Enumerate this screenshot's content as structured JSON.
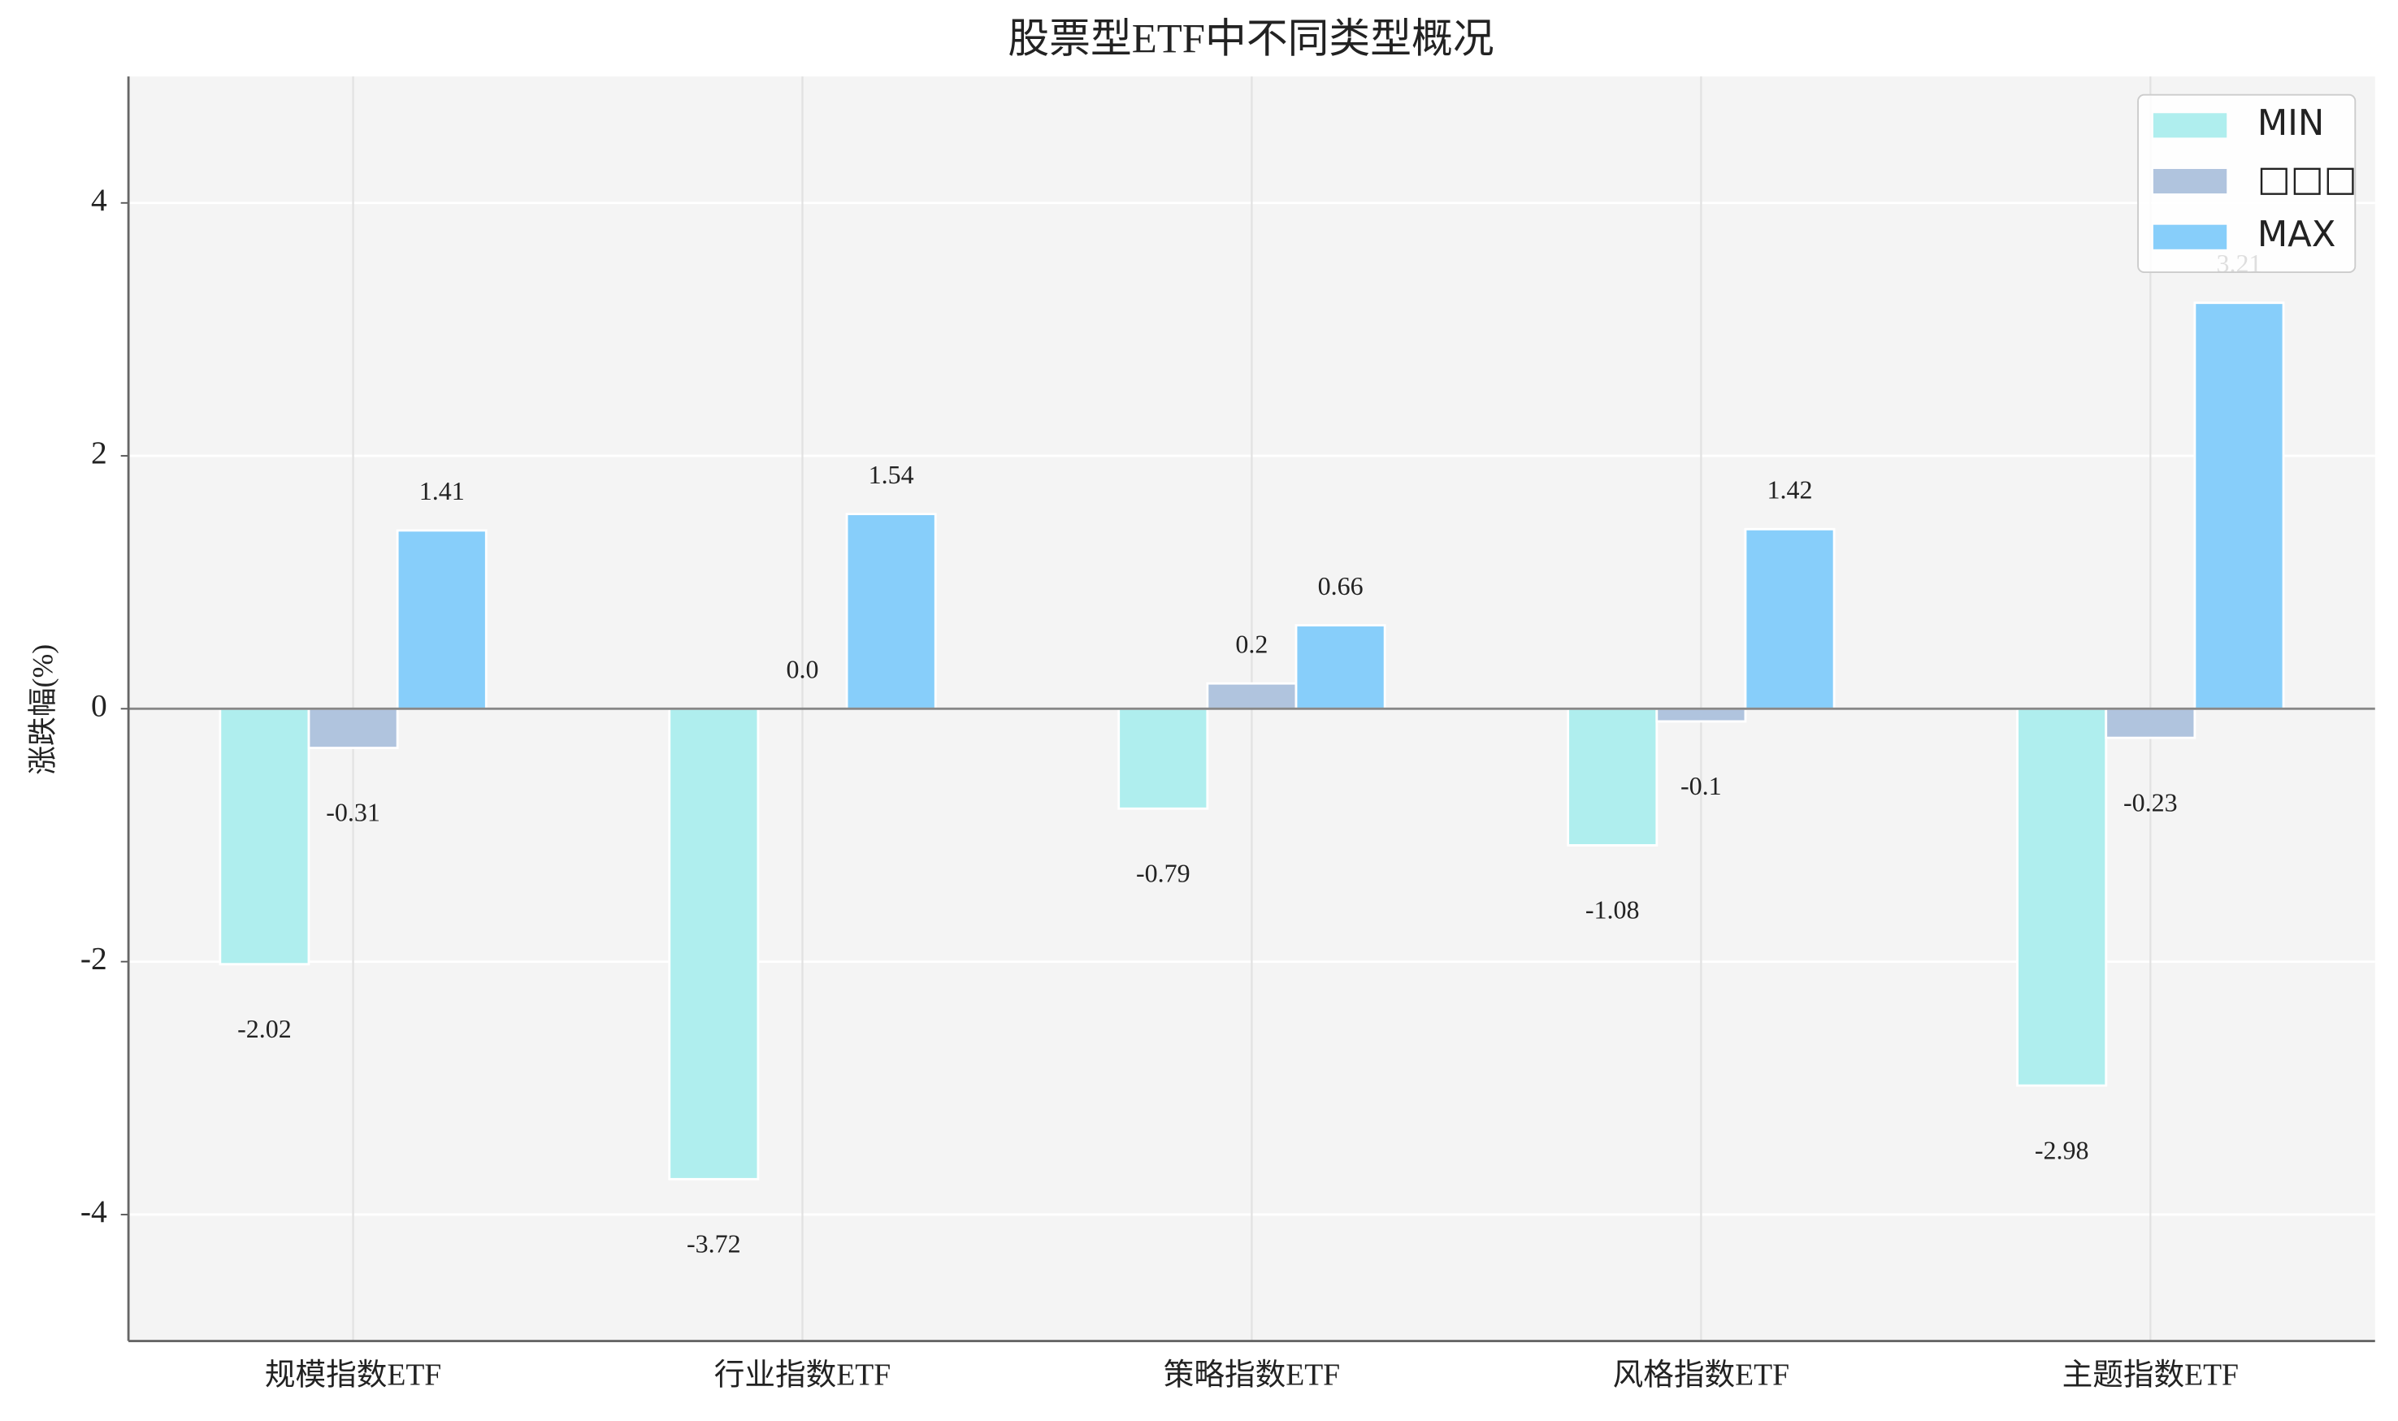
{
  "chart_data": {
    "type": "bar",
    "title": "股票型ETF中不同类型概况",
    "y_label": "涨跌幅(%)",
    "categories": [
      "规模指数ETF",
      "行业指数ETF",
      "策略指数ETF",
      "风格指数ETF",
      "主题指数ETF"
    ],
    "series": [
      {
        "name": "MIN",
        "color": "#afeeee",
        "values": [
          -2.02,
          -3.72,
          -0.79,
          -1.08,
          -2.98
        ]
      },
      {
        "name": "□□□",
        "color": "#b0c4de",
        "values": [
          -0.31,
          0.0,
          0.2,
          -0.1,
          -0.23
        ],
        "value_labels": [
          "-0.31",
          "0.0",
          "0.2",
          "-0.1",
          "-0.23"
        ]
      },
      {
        "name": "MAX",
        "color": "#87cefa",
        "values": [
          1.41,
          1.54,
          0.66,
          1.42,
          3.21
        ]
      }
    ],
    "ylim": [
      -5,
      5
    ],
    "yticks": [
      -4,
      -2,
      0,
      2,
      4
    ],
    "grid": true,
    "legend": "upper right"
  }
}
